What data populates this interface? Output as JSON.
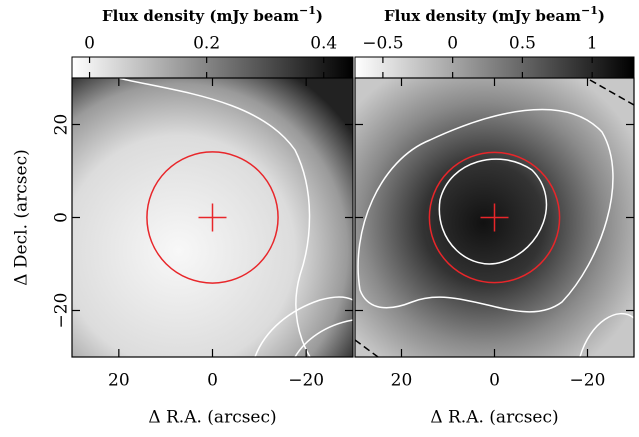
{
  "chart_data": [
    {
      "type": "image",
      "colorbar_label": [
        "Flux density (mJy beam",
        "−1",
        ")"
      ],
      "colorbar_lim": [
        -0.03,
        0.45
      ],
      "colorbar_ticks": [
        0,
        0.2,
        0.4
      ],
      "xlim": [
        30,
        -30
      ],
      "ylim": [
        -30,
        30
      ],
      "xticks": [
        20,
        0,
        {
          "value": -20,
          "label": "−20"
        }
      ],
      "yticks": [
        {
          "value": -20,
          "label": "−20"
        },
        0,
        20
      ],
      "xlabel": "Δ R.A. (arcsec)",
      "ylabel": "Δ Decl. (arcsec)",
      "marker": {
        "x": 0,
        "y": 0,
        "radius": 14,
        "color": "#e8262a"
      }
    },
    {
      "type": "image",
      "colorbar_label": [
        "Flux density (mJy beam",
        "−1",
        ")"
      ],
      "colorbar_lim": [
        -0.7,
        1.3
      ],
      "colorbar_ticks": [
        {
          "value": -0.5,
          "label": "−0.5"
        },
        0,
        0.5,
        1
      ],
      "xlim": [
        30,
        -30
      ],
      "ylim": [
        -30,
        30
      ],
      "xticks": [
        20,
        0,
        {
          "value": -20,
          "label": "−20"
        }
      ],
      "yticks": [
        -20,
        0,
        20
      ],
      "xlabel": "Δ R.A. (arcsec)",
      "marker": {
        "x": 0,
        "y": 0,
        "radius": 14,
        "color": "#e8262a"
      }
    }
  ]
}
